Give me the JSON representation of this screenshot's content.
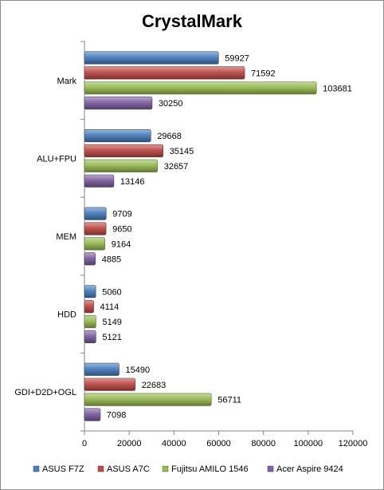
{
  "chart_data": {
    "type": "bar",
    "orientation": "horizontal",
    "title": "CrystalMark",
    "xlabel": "",
    "ylabel": "",
    "categories": [
      "Mark",
      "ALU+FPU",
      "MEM",
      "HDD",
      "GDI+D2D+OGL"
    ],
    "series": [
      {
        "name": "ASUS F7Z",
        "color": "#4a7ebb",
        "values": [
          59927,
          29668,
          9709,
          5060,
          15490
        ]
      },
      {
        "name": "ASUS A7C",
        "color": "#be4b48",
        "values": [
          71592,
          35145,
          9650,
          4114,
          22683
        ]
      },
      {
        "name": "Fujitsu AMILO 1546",
        "color": "#98b954",
        "values": [
          103681,
          32657,
          9164,
          5149,
          56711
        ]
      },
      {
        "name": "Acer Aspire 9424",
        "color": "#7d60a0",
        "values": [
          30250,
          13146,
          4885,
          5121,
          7098
        ]
      }
    ],
    "xlim": [
      0,
      120000
    ],
    "ticks": [
      0,
      20000,
      40000,
      60000,
      80000,
      100000,
      120000
    ],
    "tick_labels": [
      "0",
      "20000",
      "40000",
      "60000",
      "80000",
      "100000",
      "120000"
    ],
    "grid": false,
    "legend_position": "bottom"
  }
}
